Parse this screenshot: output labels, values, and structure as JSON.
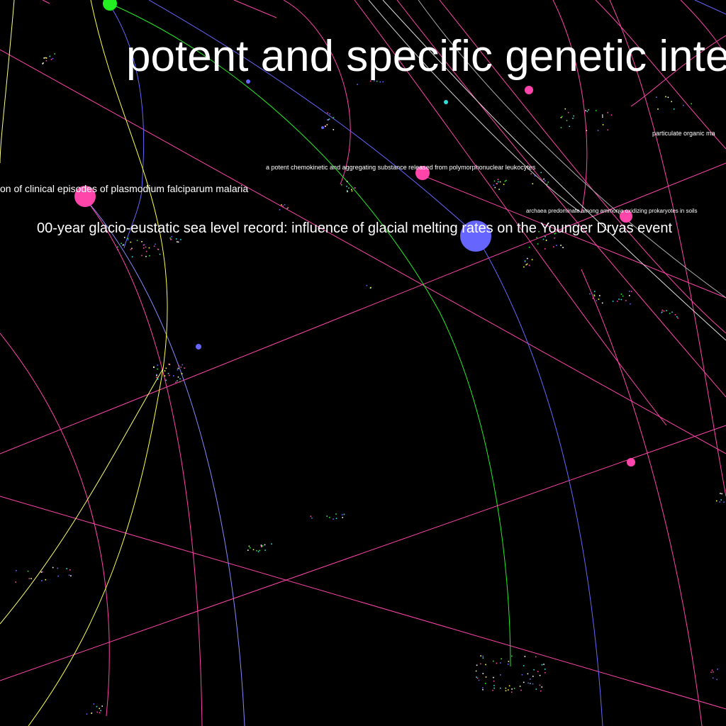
{
  "labels": {
    "title": "potent and specific genetic inte",
    "sea_level": "00-year glacio-eustatic sea level record: influence of glacial melting rates on the Younger Dryas event",
    "malaria": "on of clinical episodes of plasmodium falciparum malaria",
    "chemokinetic": "a potent chemokinetic and aggregating substance released from polymorphonuclear leukocytes",
    "archaea": "archaea predominate among ammonia oxidizing prokaryotes in soils",
    "particulate": "particulate organic ma"
  },
  "colors": {
    "background": "#000000",
    "pink": "#ff3399",
    "magenta": "#ff44aa",
    "blue": "#6666ff",
    "green": "#22ee22",
    "yellow": "#ffff44",
    "cyan": "#33dddd",
    "white": "#ffffff"
  }
}
